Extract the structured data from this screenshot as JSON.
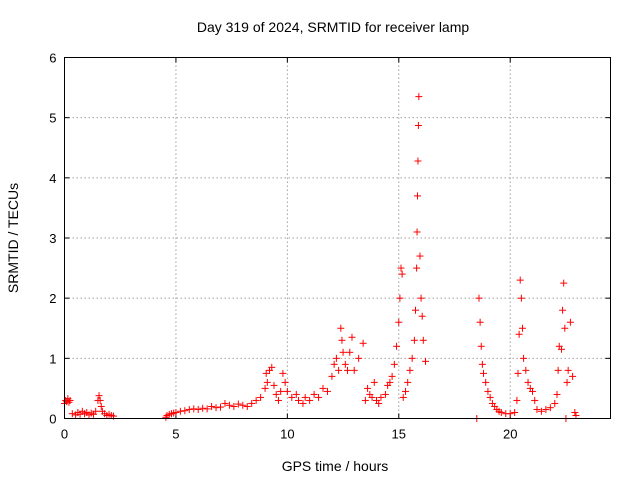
{
  "chart_data": {
    "type": "scatter",
    "title": "Day 319 of 2024, SRMTID for receiver lamp",
    "xlabel": "GPS time / hours",
    "ylabel": "SRMTID / TECUs",
    "xlim": [
      0,
      24.5
    ],
    "ylim": [
      0,
      6
    ],
    "xticks": [
      0,
      5,
      10,
      15,
      20
    ],
    "yticks": [
      0,
      1,
      2,
      3,
      4,
      5,
      6
    ],
    "xtick_labels": [
      "0",
      "5",
      "10",
      "15",
      "20"
    ],
    "ytick_labels": [
      "0",
      "1",
      "2",
      "3",
      "4",
      "5",
      "6"
    ],
    "grid": true,
    "marker": "+",
    "color": "#ff0000",
    "series": [
      {
        "name": "lamp",
        "points": [
          [
            0.0,
            0.25
          ],
          [
            0.05,
            0.3
          ],
          [
            0.1,
            0.28
          ],
          [
            0.15,
            0.33
          ],
          [
            0.2,
            0.27
          ],
          [
            0.25,
            0.3
          ],
          [
            0.35,
            0.08
          ],
          [
            0.5,
            0.06
          ],
          [
            0.6,
            0.1
          ],
          [
            0.7,
            0.07
          ],
          [
            0.8,
            0.12
          ],
          [
            0.9,
            0.08
          ],
          [
            1.0,
            0.1
          ],
          [
            1.1,
            0.06
          ],
          [
            1.2,
            0.09
          ],
          [
            1.3,
            0.07
          ],
          [
            1.4,
            0.12
          ],
          [
            1.5,
            0.3
          ],
          [
            1.55,
            0.38
          ],
          [
            1.6,
            0.3
          ],
          [
            1.65,
            0.2
          ],
          [
            1.7,
            0.12
          ],
          [
            1.8,
            0.08
          ],
          [
            1.9,
            0.05
          ],
          [
            2.0,
            0.07
          ],
          [
            2.1,
            0.05
          ],
          [
            2.2,
            0.04
          ],
          [
            4.55,
            0.02
          ],
          [
            4.6,
            0.05
          ],
          [
            4.7,
            0.07
          ],
          [
            4.8,
            0.08
          ],
          [
            4.9,
            0.09
          ],
          [
            5.0,
            0.1
          ],
          [
            5.2,
            0.12
          ],
          [
            5.4,
            0.13
          ],
          [
            5.6,
            0.15
          ],
          [
            5.8,
            0.16
          ],
          [
            6.0,
            0.15
          ],
          [
            6.2,
            0.17
          ],
          [
            6.4,
            0.16
          ],
          [
            6.6,
            0.2
          ],
          [
            6.8,
            0.18
          ],
          [
            7.0,
            0.19
          ],
          [
            7.2,
            0.25
          ],
          [
            7.4,
            0.22
          ],
          [
            7.6,
            0.2
          ],
          [
            7.8,
            0.24
          ],
          [
            8.0,
            0.22
          ],
          [
            8.2,
            0.2
          ],
          [
            8.4,
            0.25
          ],
          [
            8.6,
            0.3
          ],
          [
            8.8,
            0.35
          ],
          [
            9.0,
            0.5
          ],
          [
            9.05,
            0.75
          ],
          [
            9.1,
            0.6
          ],
          [
            9.2,
            0.8
          ],
          [
            9.3,
            0.85
          ],
          [
            9.4,
            0.55
          ],
          [
            9.5,
            0.4
          ],
          [
            9.6,
            0.3
          ],
          [
            9.7,
            0.45
          ],
          [
            9.8,
            0.75
          ],
          [
            9.9,
            0.6
          ],
          [
            10.0,
            0.45
          ],
          [
            10.2,
            0.35
          ],
          [
            10.4,
            0.4
          ],
          [
            10.5,
            0.3
          ],
          [
            10.7,
            0.25
          ],
          [
            10.8,
            0.35
          ],
          [
            11.0,
            0.3
          ],
          [
            11.2,
            0.4
          ],
          [
            11.4,
            0.35
          ],
          [
            11.6,
            0.5
          ],
          [
            11.8,
            0.45
          ],
          [
            12.0,
            0.7
          ],
          [
            12.1,
            0.9
          ],
          [
            12.2,
            1.0
          ],
          [
            12.3,
            0.8
          ],
          [
            12.4,
            1.5
          ],
          [
            12.45,
            1.3
          ],
          [
            12.5,
            1.1
          ],
          [
            12.6,
            0.9
          ],
          [
            12.7,
            0.8
          ],
          [
            12.8,
            1.1
          ],
          [
            12.9,
            1.35
          ],
          [
            13.0,
            0.8
          ],
          [
            13.2,
            1.0
          ],
          [
            13.4,
            1.25
          ],
          [
            13.5,
            0.3
          ],
          [
            13.6,
            0.5
          ],
          [
            13.7,
            0.4
          ],
          [
            13.8,
            0.35
          ],
          [
            13.9,
            0.6
          ],
          [
            14.0,
            0.3
          ],
          [
            14.1,
            0.25
          ],
          [
            14.2,
            0.35
          ],
          [
            14.4,
            0.4
          ],
          [
            14.5,
            0.55
          ],
          [
            14.6,
            0.6
          ],
          [
            14.7,
            0.7
          ],
          [
            14.8,
            0.9
          ],
          [
            14.9,
            1.2
          ],
          [
            15.0,
            1.6
          ],
          [
            15.05,
            2.0
          ],
          [
            15.1,
            2.5
          ],
          [
            15.15,
            2.4
          ],
          [
            15.2,
            0.35
          ],
          [
            15.3,
            0.45
          ],
          [
            15.4,
            0.6
          ],
          [
            15.5,
            0.8
          ],
          [
            15.6,
            1.0
          ],
          [
            15.7,
            1.3
          ],
          [
            15.75,
            1.8
          ],
          [
            15.8,
            2.5
          ],
          [
            15.82,
            3.1
          ],
          [
            15.84,
            3.7
          ],
          [
            15.86,
            4.28
          ],
          [
            15.88,
            4.87
          ],
          [
            15.9,
            5.35
          ],
          [
            15.95,
            2.7
          ],
          [
            16.0,
            2.0
          ],
          [
            16.05,
            1.7
          ],
          [
            16.1,
            1.3
          ],
          [
            16.2,
            0.95
          ],
          [
            18.5,
            0.0
          ],
          [
            18.6,
            2.0
          ],
          [
            18.65,
            1.6
          ],
          [
            18.7,
            1.2
          ],
          [
            18.75,
            0.9
          ],
          [
            18.8,
            0.75
          ],
          [
            18.9,
            0.6
          ],
          [
            19.0,
            0.45
          ],
          [
            19.1,
            0.35
          ],
          [
            19.2,
            0.25
          ],
          [
            19.3,
            0.2
          ],
          [
            19.4,
            0.15
          ],
          [
            19.5,
            0.12
          ],
          [
            19.6,
            0.1
          ],
          [
            19.8,
            0.08
          ],
          [
            20.0,
            0.08
          ],
          [
            20.2,
            0.1
          ],
          [
            20.3,
            0.3
          ],
          [
            20.35,
            0.75
          ],
          [
            20.4,
            1.4
          ],
          [
            20.45,
            2.3
          ],
          [
            20.5,
            2.0
          ],
          [
            20.55,
            1.5
          ],
          [
            20.6,
            1.0
          ],
          [
            20.7,
            0.8
          ],
          [
            20.8,
            0.6
          ],
          [
            20.9,
            0.5
          ],
          [
            21.0,
            0.45
          ],
          [
            21.1,
            0.3
          ],
          [
            21.2,
            0.15
          ],
          [
            21.4,
            0.12
          ],
          [
            21.6,
            0.15
          ],
          [
            21.8,
            0.18
          ],
          [
            22.0,
            0.25
          ],
          [
            22.1,
            0.4
          ],
          [
            22.15,
            0.8
          ],
          [
            22.2,
            1.2
          ],
          [
            22.3,
            1.15
          ],
          [
            22.35,
            1.8
          ],
          [
            22.4,
            2.25
          ],
          [
            22.45,
            1.5
          ],
          [
            22.5,
            0.0
          ],
          [
            22.55,
            0.6
          ],
          [
            22.6,
            0.8
          ],
          [
            22.7,
            1.6
          ],
          [
            22.8,
            0.7
          ],
          [
            22.9,
            0.1
          ],
          [
            22.95,
            0.05
          ]
        ]
      }
    ]
  }
}
